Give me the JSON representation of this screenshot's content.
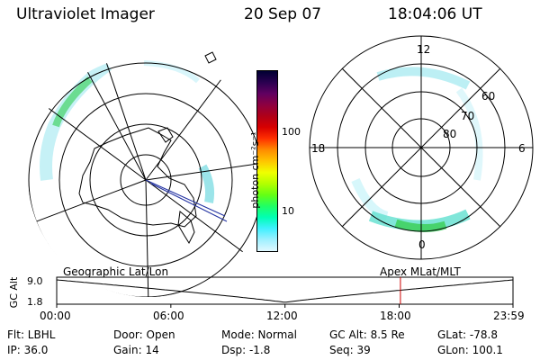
{
  "header": {
    "title": "Ultraviolet Imager",
    "date": "20 Sep 07",
    "time": "18:04:06 UT"
  },
  "left_map": {
    "caption": "Geographic Lat/Lon"
  },
  "right_map": {
    "caption": "Apex MLat/MLT",
    "mlt_labels": {
      "top": "12",
      "bottom": "0",
      "left": "18",
      "right": "6"
    },
    "lat_labels": [
      "60",
      "70",
      "80"
    ]
  },
  "colorbar": {
    "unit": "photon cm⁻²s⁻¹",
    "ticks": [
      "100",
      "10"
    ],
    "colors": [
      "#000033",
      "#2a0050",
      "#600060",
      "#8e0040",
      "#b00018",
      "#d80000",
      "#ff3000",
      "#ff8c00",
      "#ffc400",
      "#f0ff00",
      "#b4ff00",
      "#64ff14",
      "#20ff64",
      "#00ffb4",
      "#40f0ff",
      "#a0f0ff",
      "#e0f8ff"
    ]
  },
  "timeline": {
    "ylabel": "GC Alt",
    "y_ticks": [
      "9.0",
      "1.8"
    ],
    "x_ticks": [
      "00:00",
      "06:00",
      "12:00",
      "18:00",
      "23:59"
    ],
    "current_time": "18:04",
    "trace_color": "#000000",
    "marker_color": "#cc0000"
  },
  "status": {
    "filter": "Flt: LBHL",
    "ip": "IP: 36.0",
    "door": "Door: Open",
    "gain": "Gain: 14",
    "mode": "Mode: Normal",
    "dsp": "Dsp:   -1.8",
    "gc_alt": "GC Alt: 8.5 Re",
    "seq": "Seq: 39",
    "glat": "GLat: -78.8",
    "glon": "GLon: 100.1"
  }
}
